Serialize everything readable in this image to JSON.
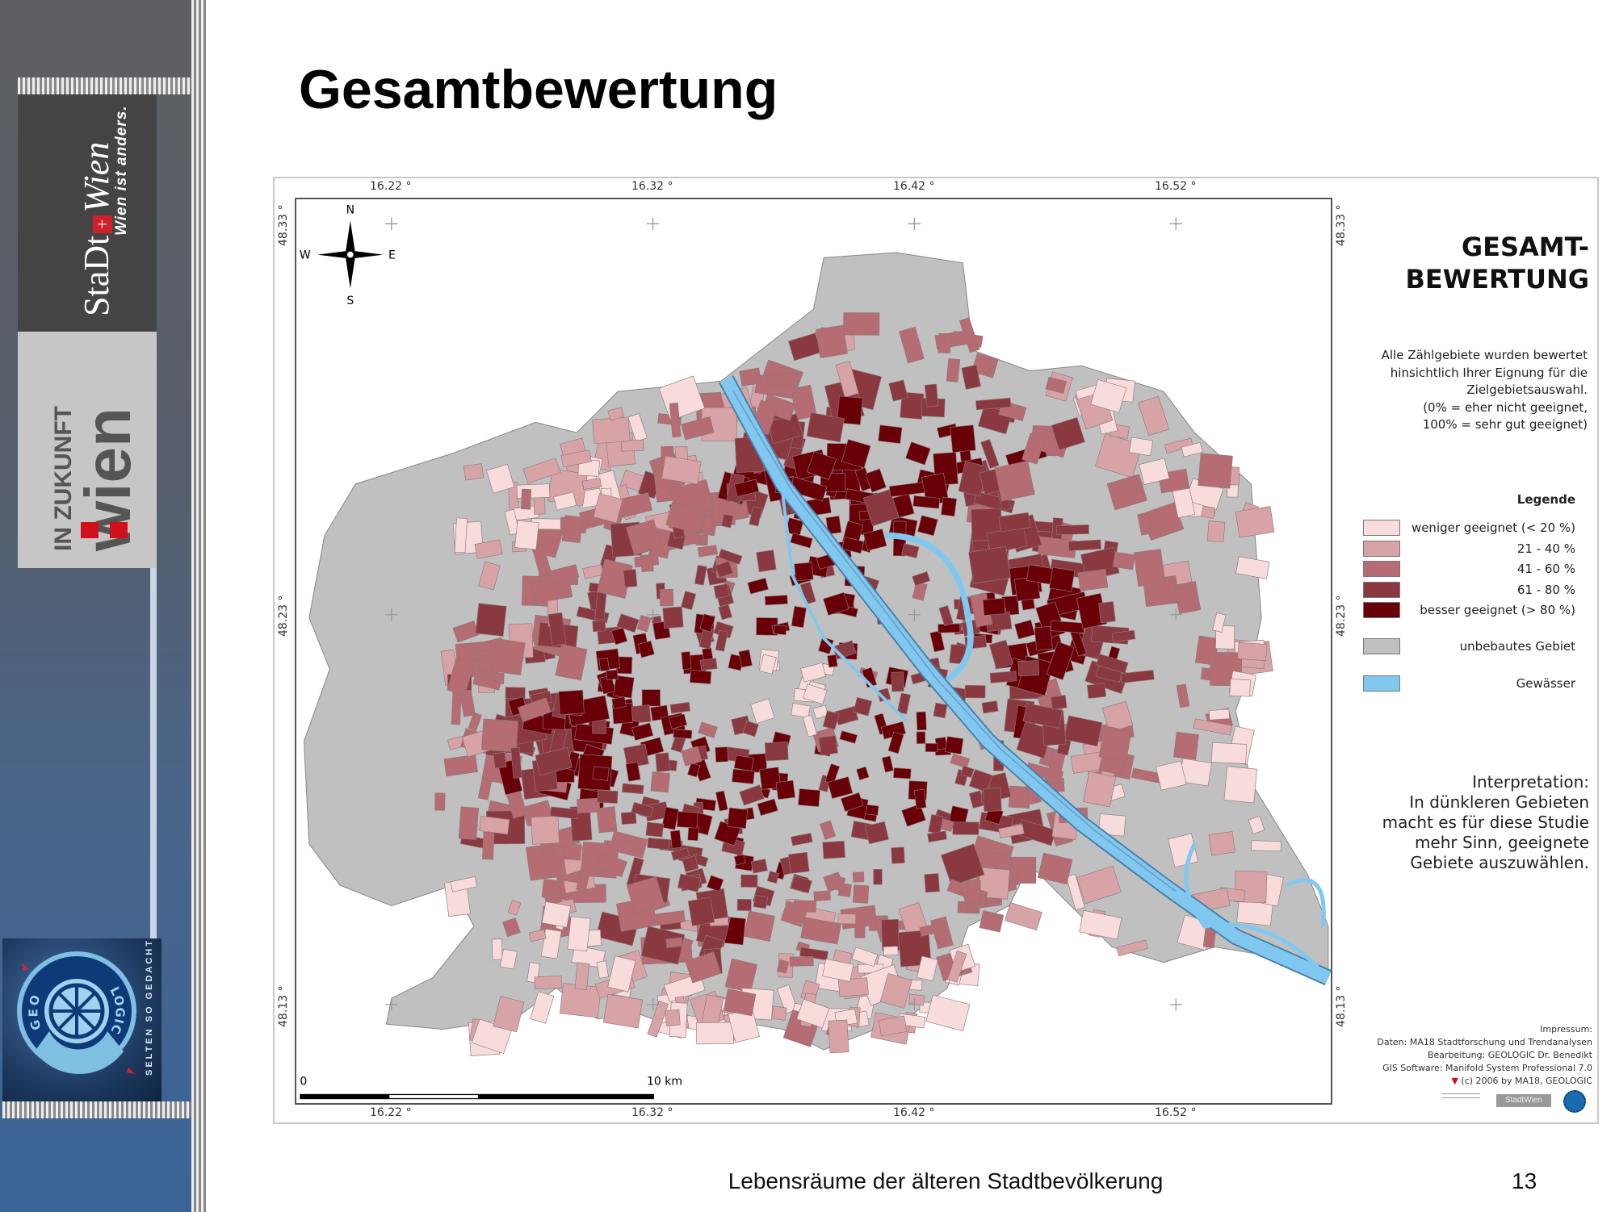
{
  "slide": {
    "title": "Gesamtbewertung",
    "footer": "Lebensräume der älteren Stadtbevölkerung",
    "page_number": "13"
  },
  "sidebar": {
    "logo_stadt": "StaDt",
    "logo_wien": "Wien",
    "logo_slogan": "Wien ist anders.",
    "logo_zukunft_small": "in zukunft",
    "logo_zukunft_big": "wien",
    "geologic_tagline": "SELTEN SO GEDACHT",
    "geologic_ring_left": "GEO",
    "geologic_ring_right": "LOGIC"
  },
  "map": {
    "heading": [
      "GESAMT-",
      "BEWERTUNG"
    ],
    "description": [
      "Alle Zählgebiete wurden bewertet",
      "hinsichtlich Ihrer Eignung für die",
      "Zielgebietsauswahl.",
      "(0% = eher nicht geeignet,",
      "100% = sehr gut geeignet)"
    ],
    "longitude_ticks": [
      "16.22 °",
      "16.32 °",
      "16.42 °",
      "16.52 °"
    ],
    "latitude_ticks": [
      "48.33 °",
      "48.23 °",
      "48.13 °"
    ],
    "compass": {
      "n": "N",
      "s": "S",
      "e": "E",
      "w": "W"
    },
    "scale_bar": {
      "start": "0",
      "end": "10 km"
    },
    "legend": {
      "title": "Legende",
      "items": [
        {
          "label": "weniger geeignet (< 20 %)",
          "color": "#f8dcdc"
        },
        {
          "label": "21 - 40 %",
          "color": "#d8a3a6"
        },
        {
          "label": "41 - 60 %",
          "color": "#b56c72"
        },
        {
          "label": "61 - 80 %",
          "color": "#8a3940"
        },
        {
          "label": "besser geeignet (> 80 %)",
          "color": "#690008"
        },
        {
          "label": "unbebautes Gebiet",
          "color": "#c0c0c0"
        },
        {
          "label": "Gewässer",
          "color": "#80c8f0"
        }
      ]
    },
    "interpretation": [
      "Interpretation:",
      "In dünkleren Gebieten",
      "macht es für diese Studie",
      "mehr Sinn, geeignete",
      "Gebiete auszuwählen."
    ],
    "impressum": [
      "Impressum:",
      "Daten: MA18 Stadtforschung und Trendanalysen",
      "Bearbeitung: GEOLOGIC Dr. Benedikt",
      "GIS Software: Manifold System Professional 7.0",
      "(c) 2006 by MA18, GEOLOGIC"
    ],
    "credit_logo_text": "StadtWien"
  }
}
